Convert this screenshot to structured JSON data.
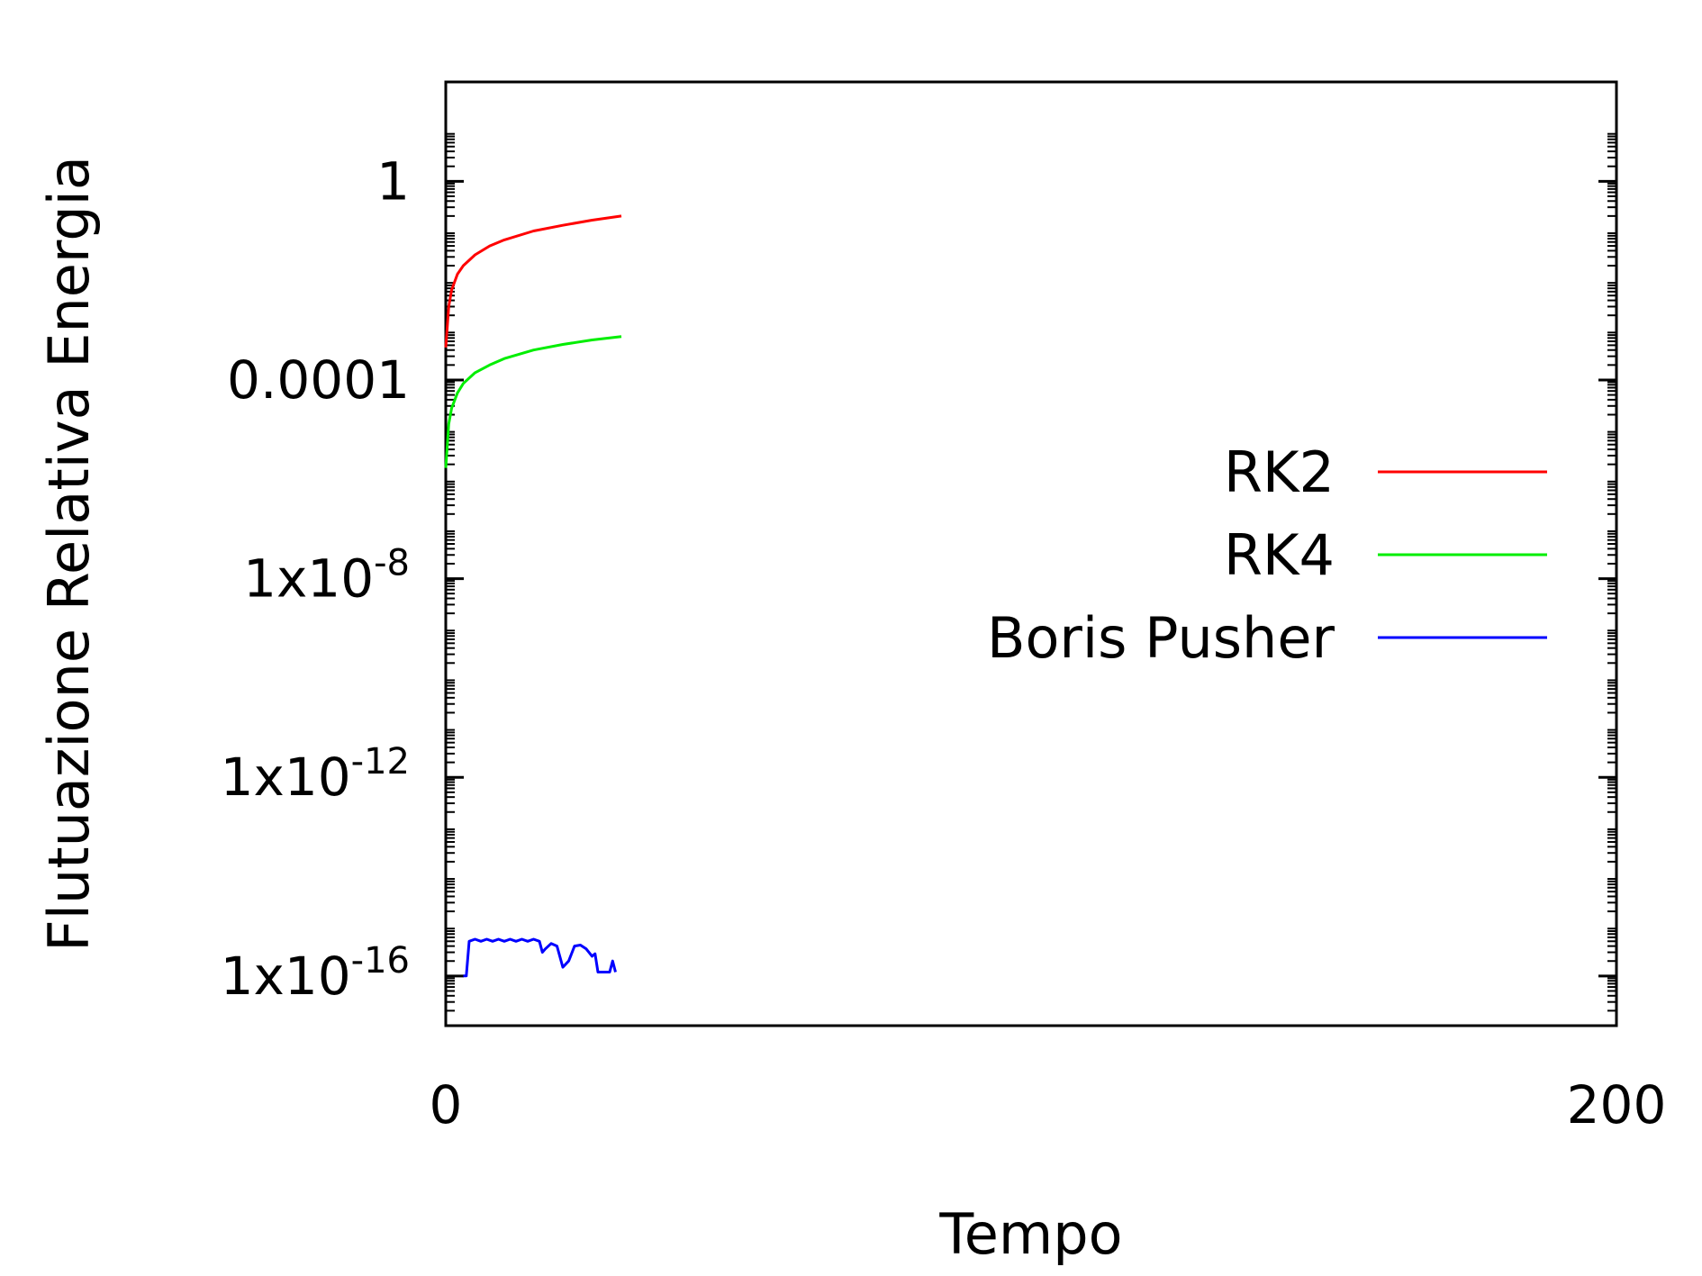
{
  "chart_data": {
    "type": "line",
    "title": "",
    "xlabel": "Tempo",
    "ylabel": "Flutuazione Relativa Energia",
    "xlim": [
      0,
      200
    ],
    "ylim": [
      1e-17,
      100
    ],
    "yscale": "log",
    "grid": false,
    "legend_position": "right",
    "x_ticks": [
      {
        "value": 0,
        "label": "0"
      },
      {
        "value": 200,
        "label": "200"
      }
    ],
    "y_ticks": [
      {
        "value": 1,
        "base": "1",
        "exp": ""
      },
      {
        "value": 0.0001,
        "base": "0.0001",
        "exp": ""
      },
      {
        "value": 1e-08,
        "base": "1x10",
        "exp": "-8"
      },
      {
        "value": 1e-12,
        "base": "1x10",
        "exp": "-12"
      },
      {
        "value": 1e-16,
        "base": "1x10",
        "exp": "-16"
      }
    ],
    "series": [
      {
        "name": "RK2",
        "color": "#ff0000",
        "x": [
          0,
          0.5,
          1,
          2,
          3,
          5,
          7.5,
          10,
          15,
          20,
          25,
          30
        ],
        "y": [
          0.00045,
          0.003,
          0.0065,
          0.0135,
          0.02,
          0.033,
          0.05,
          0.066,
          0.1,
          0.13,
          0.165,
          0.2
        ]
      },
      {
        "name": "RK4",
        "color": "#00ee00",
        "x": [
          0,
          0.5,
          1,
          2,
          3,
          5,
          7.5,
          10,
          15,
          20,
          25,
          30
        ],
        "y": [
          1.7e-06,
          1.3e-05,
          2.7e-05,
          5.5e-05,
          8.5e-05,
          0.00014,
          0.0002,
          0.00027,
          0.0004,
          0.00052,
          0.00064,
          0.00075
        ]
      },
      {
        "name": "Boris Pusher",
        "color": "#0000ff",
        "x": [
          3,
          3.5,
          4,
          5,
          6,
          7,
          8,
          9,
          10,
          11,
          12,
          13,
          14,
          15,
          16,
          16.5,
          17,
          18,
          19,
          20,
          21,
          22,
          23,
          24,
          25,
          25.5,
          26,
          28,
          28.5,
          29
        ],
        "y": [
          1e-16,
          1e-16,
          5e-16,
          5.5e-16,
          5e-16,
          5.5e-16,
          5e-16,
          5.5e-16,
          5e-16,
          5.5e-16,
          5e-16,
          5.5e-16,
          5e-16,
          5.5e-16,
          5e-16,
          3e-16,
          3.5e-16,
          4.5e-16,
          4e-16,
          1.5e-16,
          2e-16,
          4e-16,
          4.2e-16,
          3.5e-16,
          2.5e-16,
          2.8e-16,
          1.2e-16,
          1.2e-16,
          2e-16,
          1.2e-16
        ]
      }
    ]
  }
}
